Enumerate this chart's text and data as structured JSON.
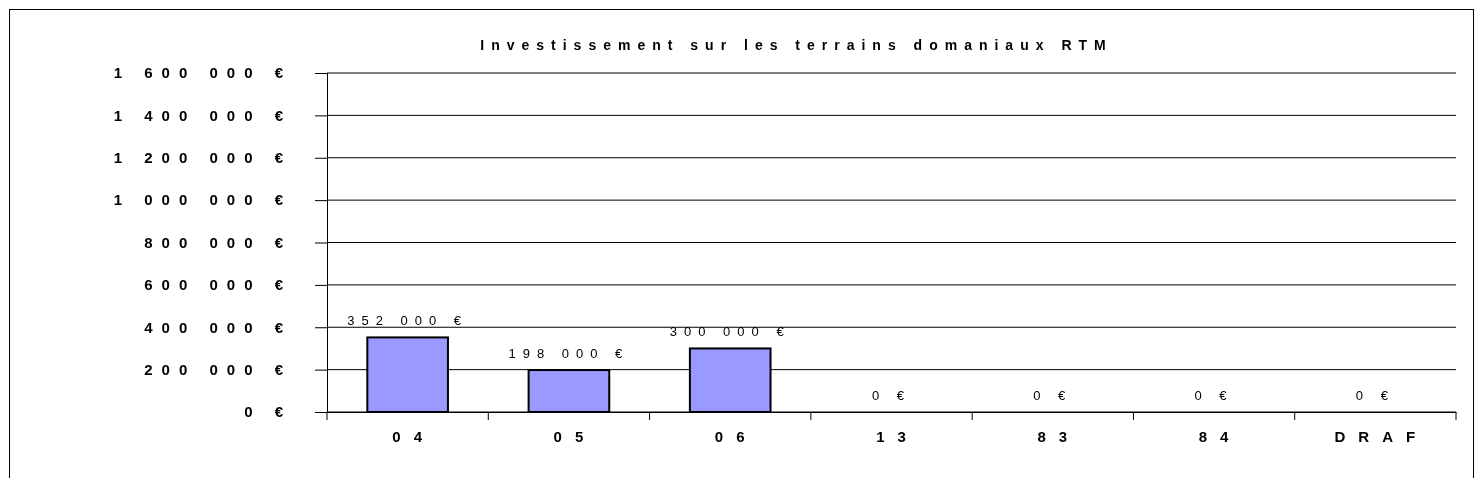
{
  "chart_data": {
    "type": "bar",
    "title": "Investissement sur les terrains domaniaux RTM",
    "categories": [
      "04",
      "05",
      "06",
      "13",
      "83",
      "84",
      "DRAF"
    ],
    "values": [
      352000,
      198000,
      300000,
      0,
      0,
      0,
      0
    ],
    "value_labels": [
      "352 000 €",
      "198 000 €",
      "300 000 €",
      "0 €",
      "0 €",
      "0 €",
      "0 €"
    ],
    "color": "#9999ff",
    "ylim": [
      0,
      1600000
    ],
    "yticks": [
      {
        "value": 0,
        "label": "0 €"
      },
      {
        "value": 200000,
        "label": "200 000 €"
      },
      {
        "value": 400000,
        "label": "400 000 €"
      },
      {
        "value": 600000,
        "label": "600 000 €"
      },
      {
        "value": 800000,
        "label": "800 000 €"
      },
      {
        "value": 1000000,
        "label": "1 000 000 €"
      },
      {
        "value": 1200000,
        "label": "1 200 000 €"
      },
      {
        "value": 1400000,
        "label": "1 400 000 €"
      },
      {
        "value": 1600000,
        "label": "1 600 000 €"
      }
    ],
    "grid": "y"
  }
}
